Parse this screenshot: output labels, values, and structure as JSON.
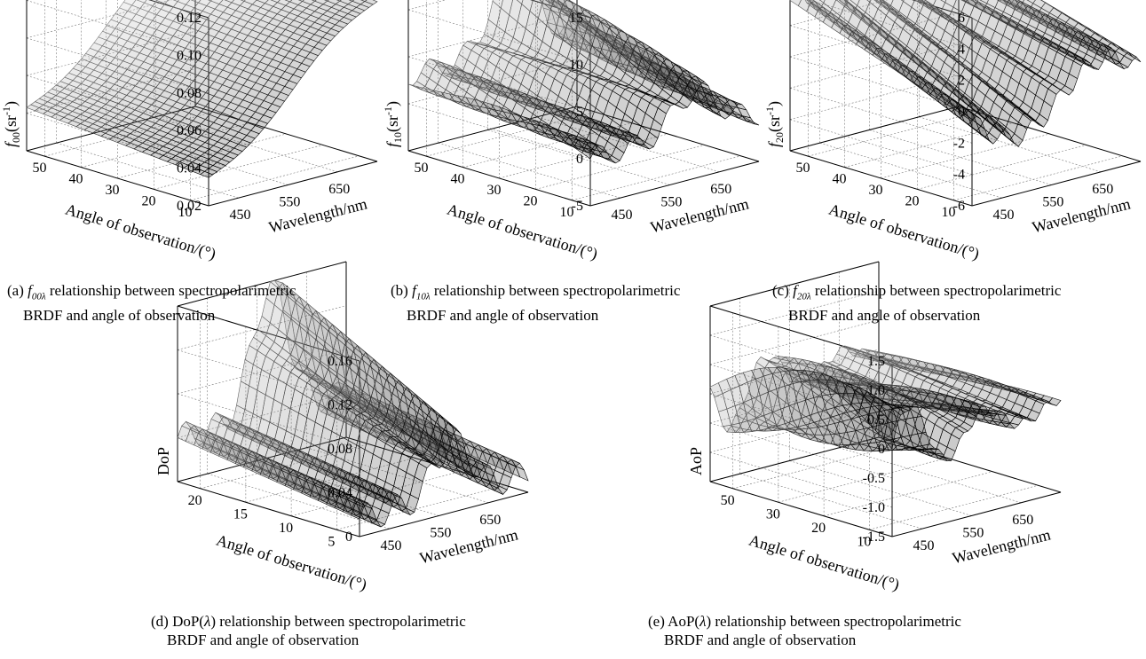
{
  "chart_data": [
    {
      "id": "a",
      "type": "surface",
      "zlabel_pre": "f",
      "zlabel_sub": "00",
      "zlabel_post": "(sr",
      "zlabel_sup": "-1",
      "zlabel_end": ")",
      "z_ticks": [
        "0.12",
        "0.10",
        "0.08",
        "0.06",
        "0.04",
        "0.02"
      ],
      "angle_ticks": [
        "50",
        "40",
        "30",
        "20",
        "10"
      ],
      "wl_ticks": [
        "450",
        "550",
        "650"
      ],
      "angle_label": "Angle of observation/(°)",
      "wl_label": "Wavelength/nm",
      "zlim": [
        0.02,
        0.12
      ],
      "angle_range": [
        5,
        55
      ],
      "wl_range": [
        400,
        720
      ],
      "description_values": {
        "min": 0.03,
        "max": 0.1
      }
    },
    {
      "id": "b",
      "type": "surface",
      "zlabel_pre": "f",
      "zlabel_sub": "10",
      "zlabel_post": "(sr",
      "zlabel_sup": "-1",
      "zlabel_end": ")",
      "z_ticks": [
        "15",
        "10",
        "5",
        "0",
        "-5"
      ],
      "angle_ticks": [
        "50",
        "40",
        "30",
        "20",
        "10"
      ],
      "wl_ticks": [
        "450",
        "550",
        "650"
      ],
      "angle_label": "Angle of observation/(°)",
      "wl_label": "Wavelength/nm",
      "zlim": [
        -5,
        15
      ],
      "angle_range": [
        5,
        55
      ],
      "wl_range": [
        400,
        720
      ]
    },
    {
      "id": "c",
      "type": "surface",
      "zlabel_pre": "f",
      "zlabel_sub": "20",
      "zlabel_post": "(sr",
      "zlabel_sup": "-1",
      "zlabel_end": ")",
      "z_ticks": [
        "6",
        "4",
        "2",
        "0",
        "-2",
        "-4",
        "-6"
      ],
      "angle_ticks": [
        "50",
        "40",
        "30",
        "20",
        "10"
      ],
      "wl_ticks": [
        "450",
        "550",
        "650"
      ],
      "angle_label": "Angle of observation/(°)",
      "wl_label": "Wavelength/nm",
      "zlim": [
        -6,
        6
      ],
      "angle_range": [
        5,
        55
      ],
      "wl_range": [
        400,
        720
      ]
    },
    {
      "id": "d",
      "type": "surface",
      "zlabel_pre": "DoP",
      "zlabel_sub": "",
      "zlabel_post": "",
      "zlabel_sup": "",
      "zlabel_end": "",
      "z_ticks": [
        "0.16",
        "0.12",
        "0.08",
        "0.04",
        "0"
      ],
      "angle_ticks": [
        "20",
        "15",
        "10",
        "5"
      ],
      "wl_ticks": [
        "450",
        "550",
        "650"
      ],
      "angle_label": "Angle of observation/(°)",
      "wl_label": "Wavelength/nm",
      "zlim": [
        0,
        0.16
      ],
      "angle_range": [
        2,
        22
      ],
      "wl_range": [
        400,
        720
      ]
    },
    {
      "id": "e",
      "type": "surface",
      "zlabel_pre": "AoP",
      "zlabel_sub": "",
      "zlabel_post": "",
      "zlabel_sup": "",
      "zlabel_end": "",
      "z_ticks": [
        "1.5",
        "1.0",
        "0.5",
        "0",
        "-0.5",
        "-1.0",
        "-1.5"
      ],
      "angle_ticks": [
        "50",
        "30",
        "20",
        "10"
      ],
      "wl_ticks": [
        "450",
        "550",
        "650"
      ],
      "angle_label": "Angle of observation/(°)",
      "wl_label": "Wavelength/nm",
      "zlim": [
        -1.5,
        1.5
      ],
      "angle_range": [
        5,
        55
      ],
      "wl_range": [
        400,
        720
      ]
    }
  ],
  "captions": {
    "a": {
      "pre": "(a) ",
      "sym": "f",
      "sub": "00λ",
      "line1": " relationship between spectropolarimetric",
      "line2": "BRDF and angle of observation"
    },
    "b": {
      "pre": "(b) ",
      "sym": "f",
      "sub": "10λ",
      "line1": " relationship between spectropolarimetric",
      "line2": "BRDF and angle of observation"
    },
    "c": {
      "pre": "(c) ",
      "sym": "f",
      "sub": "20λ",
      "line1": " relationship between spectropolarimetric",
      "line2": "BRDF and angle of observation"
    },
    "d": {
      "pre": "(d) DoP(",
      "sym": "λ",
      "sub": "",
      "line1": ") relationship between spectropolarimetric",
      "line2": "BRDF and angle of observation"
    },
    "e": {
      "pre": "(e) AoP(",
      "sym": "λ",
      "sub": "",
      "line1": ") relationship between spectropolarimetric",
      "line2": "BRDF and angle of observation"
    }
  }
}
